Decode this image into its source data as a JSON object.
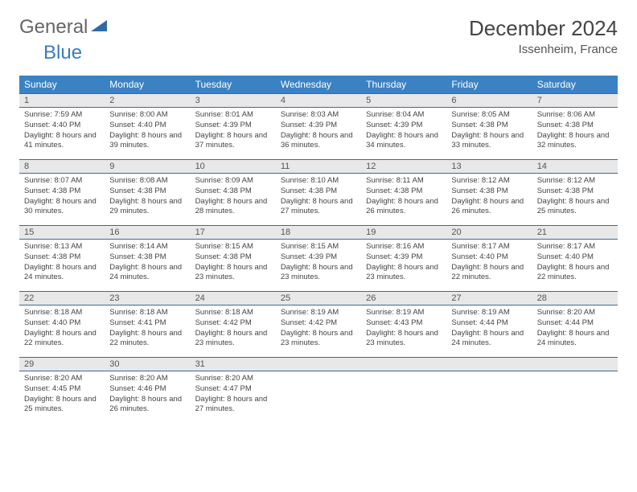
{
  "logo": {
    "text1": "General",
    "text2": "Blue"
  },
  "title": "December 2024",
  "location": "Issenheim, France",
  "colors": {
    "header_bg": "#3b82c4",
    "header_text": "#ffffff",
    "daynum_bg": "#e8e8e8",
    "border": "#3b6a9a",
    "text": "#444444",
    "logo_gray": "#666666",
    "logo_blue": "#3b7bbf"
  },
  "dayNames": [
    "Sunday",
    "Monday",
    "Tuesday",
    "Wednesday",
    "Thursday",
    "Friday",
    "Saturday"
  ],
  "weeks": [
    [
      {
        "n": "1",
        "sr": "7:59 AM",
        "ss": "4:40 PM",
        "dl": "8 hours and 41 minutes."
      },
      {
        "n": "2",
        "sr": "8:00 AM",
        "ss": "4:40 PM",
        "dl": "8 hours and 39 minutes."
      },
      {
        "n": "3",
        "sr": "8:01 AM",
        "ss": "4:39 PM",
        "dl": "8 hours and 37 minutes."
      },
      {
        "n": "4",
        "sr": "8:03 AM",
        "ss": "4:39 PM",
        "dl": "8 hours and 36 minutes."
      },
      {
        "n": "5",
        "sr": "8:04 AM",
        "ss": "4:39 PM",
        "dl": "8 hours and 34 minutes."
      },
      {
        "n": "6",
        "sr": "8:05 AM",
        "ss": "4:38 PM",
        "dl": "8 hours and 33 minutes."
      },
      {
        "n": "7",
        "sr": "8:06 AM",
        "ss": "4:38 PM",
        "dl": "8 hours and 32 minutes."
      }
    ],
    [
      {
        "n": "8",
        "sr": "8:07 AM",
        "ss": "4:38 PM",
        "dl": "8 hours and 30 minutes."
      },
      {
        "n": "9",
        "sr": "8:08 AM",
        "ss": "4:38 PM",
        "dl": "8 hours and 29 minutes."
      },
      {
        "n": "10",
        "sr": "8:09 AM",
        "ss": "4:38 PM",
        "dl": "8 hours and 28 minutes."
      },
      {
        "n": "11",
        "sr": "8:10 AM",
        "ss": "4:38 PM",
        "dl": "8 hours and 27 minutes."
      },
      {
        "n": "12",
        "sr": "8:11 AM",
        "ss": "4:38 PM",
        "dl": "8 hours and 26 minutes."
      },
      {
        "n": "13",
        "sr": "8:12 AM",
        "ss": "4:38 PM",
        "dl": "8 hours and 26 minutes."
      },
      {
        "n": "14",
        "sr": "8:12 AM",
        "ss": "4:38 PM",
        "dl": "8 hours and 25 minutes."
      }
    ],
    [
      {
        "n": "15",
        "sr": "8:13 AM",
        "ss": "4:38 PM",
        "dl": "8 hours and 24 minutes."
      },
      {
        "n": "16",
        "sr": "8:14 AM",
        "ss": "4:38 PM",
        "dl": "8 hours and 24 minutes."
      },
      {
        "n": "17",
        "sr": "8:15 AM",
        "ss": "4:38 PM",
        "dl": "8 hours and 23 minutes."
      },
      {
        "n": "18",
        "sr": "8:15 AM",
        "ss": "4:39 PM",
        "dl": "8 hours and 23 minutes."
      },
      {
        "n": "19",
        "sr": "8:16 AM",
        "ss": "4:39 PM",
        "dl": "8 hours and 23 minutes."
      },
      {
        "n": "20",
        "sr": "8:17 AM",
        "ss": "4:40 PM",
        "dl": "8 hours and 22 minutes."
      },
      {
        "n": "21",
        "sr": "8:17 AM",
        "ss": "4:40 PM",
        "dl": "8 hours and 22 minutes."
      }
    ],
    [
      {
        "n": "22",
        "sr": "8:18 AM",
        "ss": "4:40 PM",
        "dl": "8 hours and 22 minutes."
      },
      {
        "n": "23",
        "sr": "8:18 AM",
        "ss": "4:41 PM",
        "dl": "8 hours and 22 minutes."
      },
      {
        "n": "24",
        "sr": "8:18 AM",
        "ss": "4:42 PM",
        "dl": "8 hours and 23 minutes."
      },
      {
        "n": "25",
        "sr": "8:19 AM",
        "ss": "4:42 PM",
        "dl": "8 hours and 23 minutes."
      },
      {
        "n": "26",
        "sr": "8:19 AM",
        "ss": "4:43 PM",
        "dl": "8 hours and 23 minutes."
      },
      {
        "n": "27",
        "sr": "8:19 AM",
        "ss": "4:44 PM",
        "dl": "8 hours and 24 minutes."
      },
      {
        "n": "28",
        "sr": "8:20 AM",
        "ss": "4:44 PM",
        "dl": "8 hours and 24 minutes."
      }
    ],
    [
      {
        "n": "29",
        "sr": "8:20 AM",
        "ss": "4:45 PM",
        "dl": "8 hours and 25 minutes."
      },
      {
        "n": "30",
        "sr": "8:20 AM",
        "ss": "4:46 PM",
        "dl": "8 hours and 26 minutes."
      },
      {
        "n": "31",
        "sr": "8:20 AM",
        "ss": "4:47 PM",
        "dl": "8 hours and 27 minutes."
      },
      null,
      null,
      null,
      null
    ]
  ],
  "labels": {
    "sunrise": "Sunrise:",
    "sunset": "Sunset:",
    "daylight": "Daylight:"
  }
}
